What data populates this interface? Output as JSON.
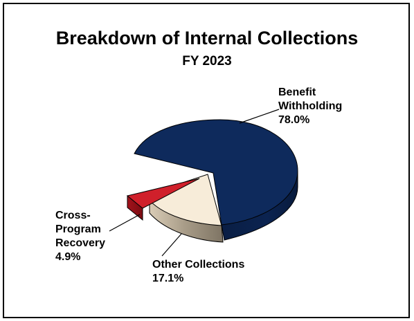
{
  "chart_data": {
    "type": "pie",
    "title": "Breakdown of Internal Collections",
    "subtitle": "FY 2023",
    "slices": [
      {
        "label_lines": [
          "Benefit",
          "Withholding"
        ],
        "value_label": "78.0%",
        "value": 78.0,
        "color": "#0e2a5c"
      },
      {
        "label_lines": [
          "Other Collections"
        ],
        "value_label": "17.1%",
        "value": 17.1,
        "color": "#f7ecd9"
      },
      {
        "label_lines": [
          "Cross-",
          "Program",
          "Recovery"
        ],
        "value_label": "4.9%",
        "value": 4.9,
        "color": "#d0202b"
      }
    ]
  }
}
